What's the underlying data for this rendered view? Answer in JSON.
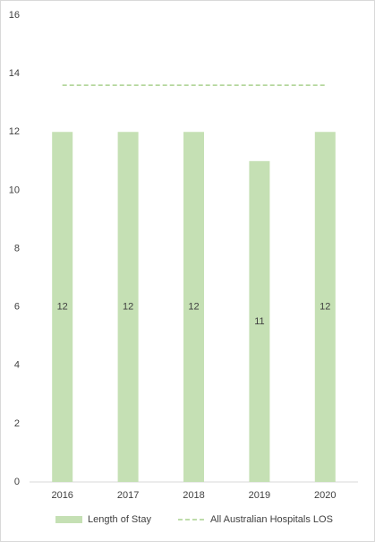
{
  "chart_data": {
    "type": "bar",
    "categories": [
      "2016",
      "2017",
      "2018",
      "2019",
      "2020"
    ],
    "series": [
      {
        "name": "Length of Stay",
        "type": "bar",
        "color": "#c5e0b4",
        "values": [
          12,
          12,
          12,
          11,
          12
        ]
      },
      {
        "name": "All Australian Hospitals LOS",
        "type": "line",
        "dashed": true,
        "color": "#a9d18e",
        "values": [
          13.6,
          13.6,
          13.6,
          13.6,
          13.6
        ]
      }
    ],
    "data_labels": true,
    "ylim": [
      0,
      16
    ],
    "yticks": [
      0,
      2,
      4,
      6,
      8,
      10,
      12,
      14,
      16
    ],
    "grid": false,
    "legend": "bottom"
  }
}
